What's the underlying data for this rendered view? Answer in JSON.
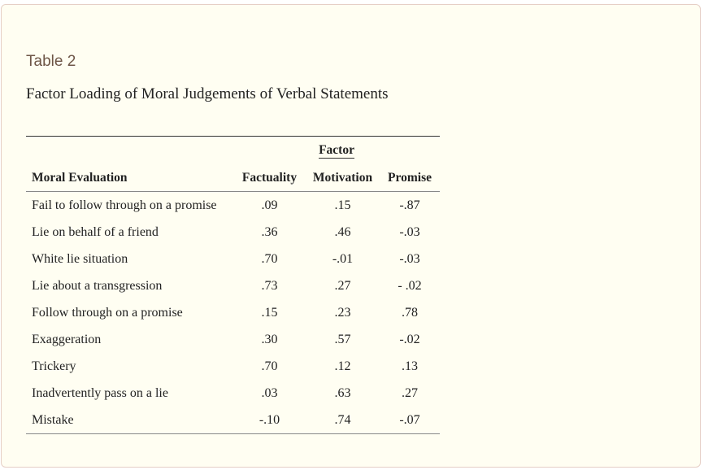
{
  "label": "Table 2",
  "title": "Factor Loading of Moral Judgements of Verbal Statements",
  "table": {
    "group_header": "Factor",
    "columns": [
      "Moral Evaluation",
      "Factuality",
      "Motivation",
      "Promise"
    ],
    "rows": [
      [
        "Fail to follow through on a promise",
        ".09",
        ".15",
        "-.87"
      ],
      [
        "Lie on behalf of a friend",
        ".36",
        ".46",
        "-.03"
      ],
      [
        "White lie situation",
        ".70",
        "-.01",
        "-.03"
      ],
      [
        "Lie about a transgression",
        ".73",
        ".27",
        "- .02"
      ],
      [
        "Follow through on a promise",
        ".15",
        ".23",
        ".78"
      ],
      [
        "Exaggeration",
        ".30",
        ".57",
        "-.02"
      ],
      [
        "Trickery",
        ".70",
        ".12",
        ".13"
      ],
      [
        "Inadvertently pass on a lie",
        ".03",
        ".63",
        ".27"
      ],
      [
        "Mistake",
        "-.10",
        ".74",
        "-.07"
      ]
    ]
  }
}
